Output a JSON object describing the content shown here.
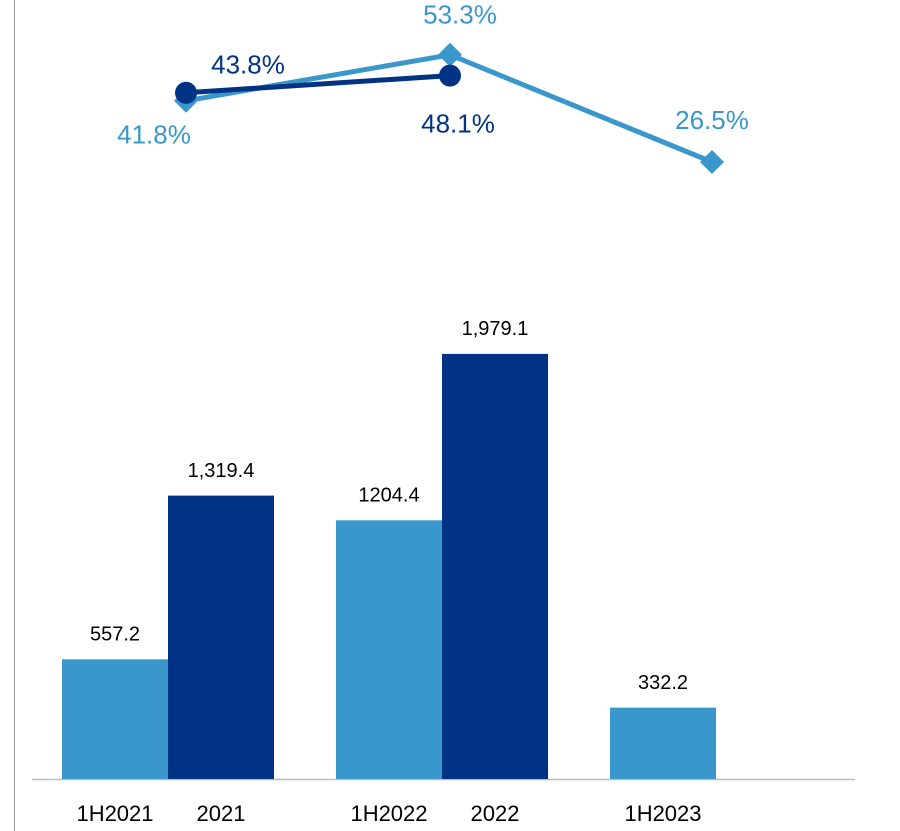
{
  "chart_data": [
    {
      "type": "bar",
      "categories": [
        "1H2021",
        "2021",
        "1H2022",
        "2022",
        "1H2023"
      ],
      "series": [
        {
          "color": "#3a97cc",
          "values": [
            557.2,
            null,
            1204.4,
            null,
            332.2
          ],
          "value_labels": [
            "557.2",
            null,
            "1204.4",
            null,
            "332.2"
          ]
        },
        {
          "color": "#003384",
          "values": [
            null,
            1319.4,
            null,
            1979.1,
            null
          ],
          "value_labels": [
            null,
            "1,319.4",
            null,
            "1,979.1",
            null
          ]
        }
      ],
      "ylim": [
        0,
        2500
      ]
    },
    {
      "type": "line",
      "categories": [
        null,
        null,
        null
      ],
      "series": [
        {
          "color": "#3a97cc",
          "marker": "diamond",
          "values": [
            41.8,
            53.3,
            26.5
          ],
          "value_labels": [
            "41.8%",
            "53.3%",
            "26.5%"
          ]
        },
        {
          "color": "#003384",
          "marker": "circle",
          "values": [
            43.8,
            48.1,
            null
          ],
          "value_labels": [
            "43.8%",
            "48.1%",
            null
          ]
        }
      ],
      "ylim": [
        0,
        65
      ]
    }
  ]
}
